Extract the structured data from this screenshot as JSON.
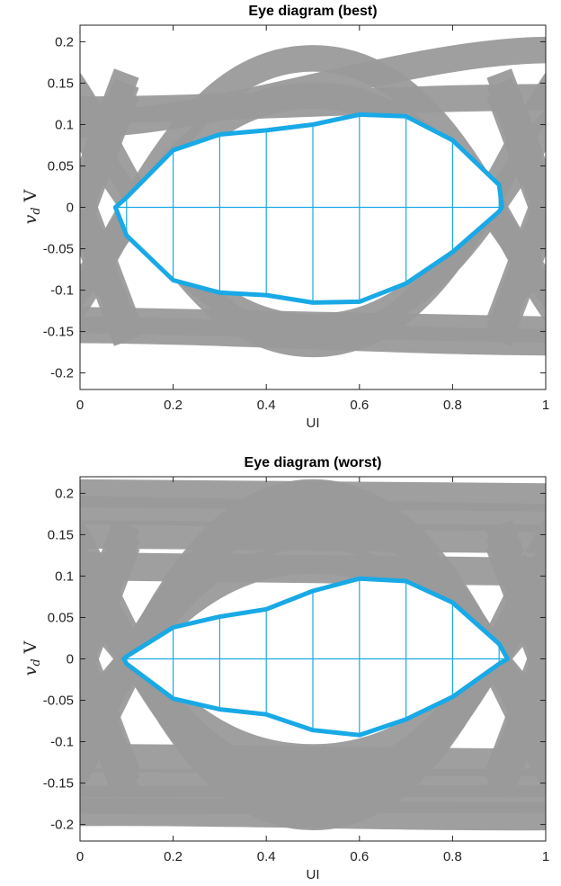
{
  "colors": {
    "traces": "#9a9a9a",
    "contour": "#19a9e6",
    "grid_lines": "#19a9e6",
    "axes": "#222222"
  },
  "chart_data": [
    {
      "type": "line",
      "title": "Eye diagram (best)",
      "xlabel": "UI",
      "ylabel": {
        "symbol": "v",
        "subscript": "d",
        "unit": "V"
      },
      "xlim": [
        0,
        1
      ],
      "ylim": [
        -0.22,
        0.22
      ],
      "xticks": [
        0,
        0.2,
        0.4,
        0.6,
        0.8,
        1
      ],
      "xtick_labels": [
        "0",
        "0.2",
        "0.4",
        "0.6",
        "0.8",
        "1"
      ],
      "yticks": [
        -0.2,
        -0.15,
        -0.1,
        -0.05,
        0,
        0.05,
        0.1,
        0.15,
        0.2
      ],
      "ytick_labels": [
        "-0.2",
        "-0.15",
        "-0.1",
        "-0.05",
        "0",
        "0.05",
        "0.1",
        "0.15",
        "0.2"
      ],
      "grid": false,
      "eye_contour": {
        "upper": [
          [
            0.076,
            0
          ],
          [
            0.1,
            0.012
          ],
          [
            0.2,
            0.069
          ],
          [
            0.3,
            0.088
          ],
          [
            0.4,
            0.093
          ],
          [
            0.5,
            0.1
          ],
          [
            0.6,
            0.112
          ],
          [
            0.7,
            0.11
          ],
          [
            0.8,
            0.081
          ],
          [
            0.9,
            0.027
          ],
          [
            0.906,
            0
          ]
        ],
        "lower": [
          [
            0.076,
            0
          ],
          [
            0.1,
            -0.034
          ],
          [
            0.2,
            -0.088
          ],
          [
            0.3,
            -0.103
          ],
          [
            0.4,
            -0.106
          ],
          [
            0.5,
            -0.115
          ],
          [
            0.6,
            -0.114
          ],
          [
            0.7,
            -0.092
          ],
          [
            0.8,
            -0.054
          ],
          [
            0.9,
            -0.005
          ],
          [
            0.906,
            0
          ]
        ],
        "center_line_x": [
          0.076,
          0.906
        ],
        "vertical_lines_x": [
          0.1,
          0.2,
          0.3,
          0.4,
          0.5,
          0.6,
          0.7,
          0.8,
          0.9
        ]
      },
      "trace_bands": {
        "flat_high": [
          [
            0.1,
            0.19
          ],
          [
            0.118,
            0.133
          ]
        ],
        "flat_low": [
          [
            -0.136,
            -0.148
          ],
          [
            -0.148,
            -0.163
          ]
        ],
        "rising": [
          [
            -0.13,
            0.135
          ],
          [
            -0.155,
            0.18
          ]
        ],
        "falling": [
          [
            0.13,
            -0.145
          ],
          [
            0.18,
            -0.165
          ]
        ],
        "cross_points": [
          0.0,
          1.0
        ],
        "band_width": 0.032
      }
    },
    {
      "type": "line",
      "title": "Eye diagram (worst)",
      "xlabel": "UI",
      "ylabel": {
        "symbol": "v",
        "subscript": "d",
        "unit": "V"
      },
      "xlim": [
        0,
        1
      ],
      "ylim": [
        -0.22,
        0.22
      ],
      "xticks": [
        0,
        0.2,
        0.4,
        0.6,
        0.8,
        1
      ],
      "xtick_labels": [
        "0",
        "0.2",
        "0.4",
        "0.6",
        "0.8",
        "1"
      ],
      "yticks": [
        -0.2,
        -0.15,
        -0.1,
        -0.05,
        0,
        0.05,
        0.1,
        0.15,
        0.2
      ],
      "ytick_labels": [
        "-0.2",
        "-0.15",
        "-0.1",
        "-0.05",
        "0",
        "0.05",
        "0.1",
        "0.15",
        "0.2"
      ],
      "grid": false,
      "eye_contour": {
        "upper": [
          [
            0.094,
            0
          ],
          [
            0.1,
            0.003
          ],
          [
            0.2,
            0.038
          ],
          [
            0.3,
            0.051
          ],
          [
            0.4,
            0.06
          ],
          [
            0.5,
            0.082
          ],
          [
            0.6,
            0.097
          ],
          [
            0.7,
            0.094
          ],
          [
            0.8,
            0.068
          ],
          [
            0.9,
            0.018
          ],
          [
            0.918,
            0
          ]
        ],
        "lower": [
          [
            0.094,
            0
          ],
          [
            0.1,
            -0.006
          ],
          [
            0.2,
            -0.048
          ],
          [
            0.3,
            -0.061
          ],
          [
            0.4,
            -0.067
          ],
          [
            0.5,
            -0.086
          ],
          [
            0.6,
            -0.092
          ],
          [
            0.7,
            -0.073
          ],
          [
            0.8,
            -0.046
          ],
          [
            0.9,
            -0.006
          ],
          [
            0.918,
            0
          ]
        ],
        "center_line_x": [
          0.094,
          0.918
        ],
        "vertical_lines_x": [
          0.1,
          0.2,
          0.3,
          0.4,
          0.5,
          0.6,
          0.7,
          0.8,
          0.9
        ]
      },
      "trace_bands": {
        "flat_high": [
          [
            0.2,
            0.195
          ],
          [
            0.18,
            0.17
          ],
          [
            0.15,
            0.145
          ],
          [
            0.112,
            0.105
          ]
        ],
        "flat_low": [
          [
            -0.12,
            -0.125
          ],
          [
            -0.15,
            -0.15
          ],
          [
            -0.17,
            -0.17
          ],
          [
            -0.185,
            -0.19
          ]
        ],
        "rising": [
          [
            -0.1,
            0.12
          ],
          [
            -0.125,
            0.15
          ],
          [
            -0.15,
            0.18
          ],
          [
            -0.18,
            0.2
          ]
        ],
        "falling": [
          [
            0.1,
            -0.12
          ],
          [
            0.13,
            -0.15
          ],
          [
            0.16,
            -0.175
          ],
          [
            0.19,
            -0.19
          ]
        ],
        "cross_points": [
          0.0,
          1.0
        ],
        "band_width": 0.034
      }
    }
  ]
}
